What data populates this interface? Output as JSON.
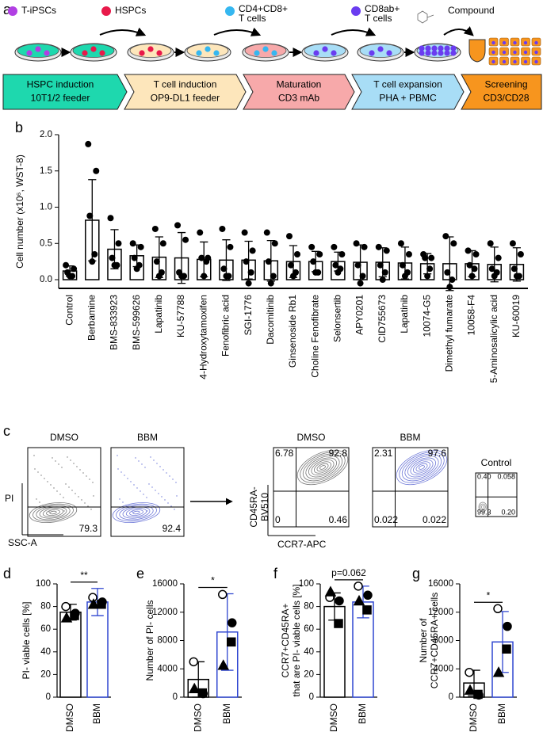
{
  "workflow": {
    "label": "a",
    "legend": [
      {
        "text": "T-iPSCs",
        "color": "#b13fe3"
      },
      {
        "text": "HSPCs",
        "color": "#e8194a"
      },
      {
        "lines": [
          "CD4+CD8+",
          "T cells"
        ],
        "color": "#35b7f0"
      },
      {
        "lines": [
          "CD8ab+",
          "T cells"
        ],
        "color": "#6a3cf0"
      }
    ],
    "compound": "Compound",
    "steps": [
      {
        "lines": [
          "HSPC induction",
          "10T1/2 feeder"
        ],
        "color": "#1ed8ae"
      },
      {
        "lines": [
          "T cell induction",
          "OP9-DL1 feeder"
        ],
        "color": "#fde6bb"
      },
      {
        "lines": [
          "Maturation",
          "CD3 mAb"
        ],
        "color": "#f7a9aa"
      },
      {
        "lines": [
          "T cell expansion",
          "PHA + PBMC"
        ],
        "color": "#a8ddf6"
      },
      {
        "lines": [
          "Screening",
          "CD3/CD28"
        ],
        "color": "#f7951e"
      }
    ]
  },
  "flow": {
    "label": "c",
    "viability": {
      "y_label": "PI",
      "x_label": "SSC-A",
      "plots": [
        {
          "title": "DMSO",
          "color": "#777777",
          "bottom_right": "79.3"
        },
        {
          "title": "BBM",
          "color": "#6f79d8",
          "bottom_right": "92.4"
        }
      ]
    },
    "phenotype": {
      "y_label": [
        "CD45RA-",
        "BV510"
      ],
      "x_label": "CCR7-APC",
      "plots": [
        {
          "title": "DMSO",
          "color": "#777777",
          "top_left": "6.78",
          "top_right": "92.8",
          "bottom_left": "0",
          "bottom_right": "0.46"
        },
        {
          "title": "BBM",
          "color": "#6f79d8",
          "top_left": "2.31",
          "top_right": "97.6",
          "bottom_left": "0.022",
          "bottom_right": "0.022"
        },
        {
          "title": "Control",
          "color": "#888888",
          "top_left": "0.40",
          "top_right": "0.058",
          "bottom_left": "99.3",
          "bottom_right": "0.20"
        }
      ]
    }
  },
  "chart_data": [
    {
      "type": "bar",
      "label": "b",
      "ylabel": "Cell number (x10⁶, WST-8)",
      "categories": [
        "Control",
        "Berbamine",
        "BMS-833923",
        "BMS-599626",
        "Lapatinib",
        "KU-57788",
        "4-Hydroxytamoxifen",
        "Fenofibric acid",
        "SGI-1776",
        "Dacomitinib",
        "Ginsenoside Rb1",
        "Choline Fenofibrate",
        "Selonsertib",
        "APY0201",
        "CID755673",
        "Lapatinib",
        "10074-G5",
        "Dimethyl fumarate",
        "10058-F4",
        "5-Aminosalicylic acid",
        "KU-60019"
      ],
      "values": [
        0.12,
        0.82,
        0.42,
        0.33,
        0.31,
        0.3,
        0.28,
        0.27,
        0.27,
        0.26,
        0.25,
        0.25,
        0.25,
        0.24,
        0.24,
        0.23,
        0.22,
        0.22,
        0.22,
        0.21,
        0.21
      ],
      "errors": [
        0.07,
        0.56,
        0.27,
        0.15,
        0.28,
        0.35,
        0.24,
        0.28,
        0.26,
        0.28,
        0.22,
        0.14,
        0.13,
        0.24,
        0.2,
        0.22,
        0.14,
        0.37,
        0.18,
        0.24,
        0.23
      ],
      "points": [
        [
          0.2,
          0.15,
          0.1,
          0.05,
          0.05
        ],
        [
          1.87,
          1.5,
          0.88,
          0.35,
          0.25
        ],
        [
          0.85,
          0.5,
          0.3,
          0.2,
          0.2
        ],
        [
          0.5,
          0.45,
          0.3,
          0.2,
          0.15
        ],
        [
          0.7,
          0.5,
          0.25,
          0.1,
          0.05
        ],
        [
          0.75,
          0.55,
          0.1,
          0.05,
          0.05
        ],
        [
          0.65,
          0.3,
          0.3,
          0.25,
          0.05
        ],
        [
          0.7,
          0.45,
          0.15,
          0.05,
          0.05
        ],
        [
          0.65,
          0.4,
          0.25,
          0.1,
          -0.05
        ],
        [
          0.65,
          0.5,
          0.25,
          0.05,
          -0.05
        ],
        [
          0.6,
          0.35,
          0.2,
          0.1,
          0.05
        ],
        [
          0.45,
          0.35,
          0.25,
          0.1,
          0.1
        ],
        [
          0.45,
          0.35,
          0.2,
          0.15,
          0.1
        ],
        [
          0.5,
          0.45,
          0.2,
          0.05,
          -0.05
        ],
        [
          0.45,
          0.4,
          0.2,
          0.1,
          0.0
        ],
        [
          0.5,
          0.35,
          0.2,
          0.1,
          0.05
        ],
        [
          0.35,
          0.3,
          0.3,
          0.15,
          0.05
        ],
        [
          0.6,
          0.5,
          0.1,
          0.0,
          -0.1
        ],
        [
          0.4,
          0.35,
          0.2,
          0.15,
          0.05
        ],
        [
          0.5,
          0.3,
          0.15,
          0.1,
          0.05
        ],
        [
          0.5,
          0.35,
          0.15,
          0.05,
          0.05
        ]
      ],
      "color": "#000000",
      "ylim": [
        -0.12,
        2.0
      ],
      "yticks": [
        {
          "value": 0,
          "label": "0.0"
        },
        {
          "value": 0.5,
          "label": "0.5"
        },
        {
          "value": 1,
          "label": "1.0"
        },
        {
          "value": 1.5,
          "label": "1.5"
        },
        {
          "value": 2,
          "label": "2.0"
        }
      ]
    },
    {
      "type": "bar",
      "label": "d",
      "ylabel": "PI- viable cells [%]",
      "categories": [
        "DMSO",
        "BBM"
      ],
      "values": [
        75,
        84
      ],
      "errors": [
        7,
        12
      ],
      "points": [
        [
          80,
          74,
          70,
          72
        ],
        [
          88,
          84,
          82,
          82
        ]
      ],
      "markers": [
        "open-circle",
        "circle",
        "triangle",
        "square"
      ],
      "colors": [
        "#000000",
        "#2f46d0"
      ],
      "annotation": "**",
      "ylim": [
        0,
        100
      ],
      "yticks": [
        0,
        20,
        40,
        60,
        80,
        100
      ]
    },
    {
      "type": "bar",
      "label": "e",
      "ylabel": "Number of PI- cells",
      "categories": [
        "DMSO",
        "BBM"
      ],
      "values": [
        2500,
        9200
      ],
      "errors": [
        2500,
        5400
      ],
      "points": [
        [
          5000,
          500,
          1200,
          600
        ],
        [
          14500,
          10500,
          4500,
          7800
        ]
      ],
      "markers": [
        "open-circle",
        "circle",
        "triangle",
        "square"
      ],
      "colors": [
        "#000000",
        "#2f46d0"
      ],
      "annotation": "*",
      "ylim": [
        0,
        16000
      ],
      "yticks": [
        0,
        4000,
        8000,
        12000,
        16000
      ]
    },
    {
      "type": "bar",
      "label": "f",
      "ylabel": [
        "CCR7+CD45RA+",
        "that are PI- viable cells [%]"
      ],
      "categories": [
        "DMSO",
        "BBM"
      ],
      "values": [
        80,
        84
      ],
      "errors": [
        12,
        14
      ],
      "points": [
        [
          88,
          85,
          93,
          65
        ],
        [
          98,
          90,
          85,
          77
        ]
      ],
      "markers": [
        "open-circle",
        "circle",
        "triangle",
        "square"
      ],
      "colors": [
        "#000000",
        "#2f46d0"
      ],
      "annotation": "p=0.062",
      "ylim": [
        0,
        100
      ],
      "yticks": [
        0,
        20,
        40,
        60,
        80,
        100
      ]
    },
    {
      "type": "bar",
      "label": "g",
      "ylabel": [
        "Number of",
        "CCR7+CD45RA+ cells"
      ],
      "categories": [
        "DMSO",
        "BBM"
      ],
      "values": [
        2000,
        7800
      ],
      "errors": [
        1800,
        4300
      ],
      "points": [
        [
          3500,
          300,
          1000,
          400
        ],
        [
          12500,
          10000,
          3500,
          6800
        ]
      ],
      "markers": [
        "open-circle",
        "circle",
        "triangle",
        "square"
      ],
      "colors": [
        "#000000",
        "#2f46d0"
      ],
      "annotation": "*",
      "ylim": [
        0,
        16000
      ],
      "yticks": [
        0,
        4000,
        8000,
        12000,
        16000
      ]
    }
  ]
}
